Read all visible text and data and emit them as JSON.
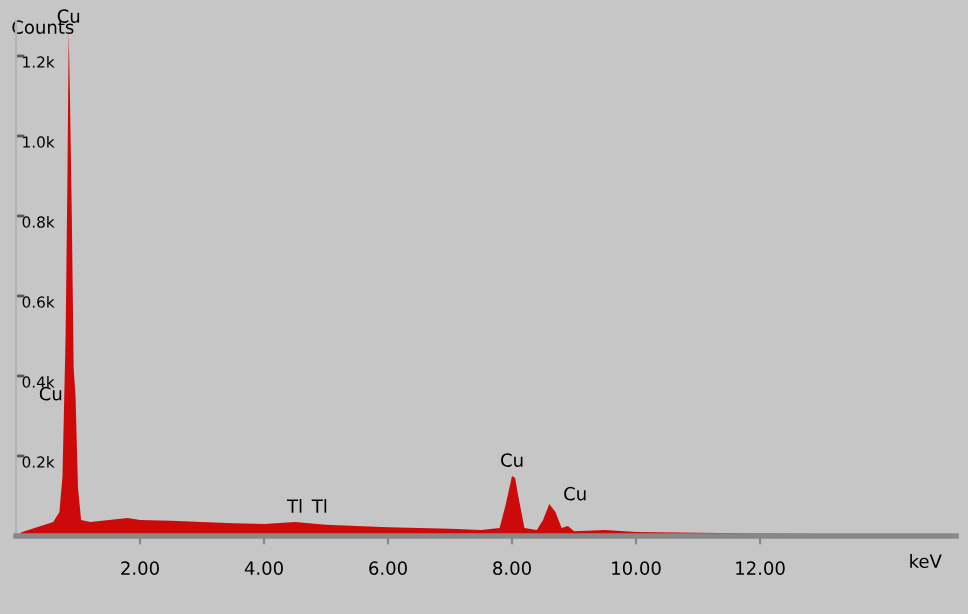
{
  "chart_data": {
    "type": "area",
    "xlabel": "keV",
    "ylabel": "Counts",
    "color": "#cc0a0a",
    "x": [
      0.0,
      0.1,
      0.2,
      0.3,
      0.4,
      0.5,
      0.6,
      0.7,
      0.75,
      0.8,
      0.83,
      0.85,
      0.87,
      0.9,
      0.93,
      0.96,
      1.0,
      1.05,
      1.2,
      1.5,
      1.8,
      2.0,
      2.5,
      3.0,
      3.5,
      4.0,
      4.5,
      5.0,
      5.5,
      6.0,
      6.5,
      7.0,
      7.5,
      7.8,
      7.9,
      8.0,
      8.05,
      8.1,
      8.2,
      8.4,
      8.5,
      8.6,
      8.7,
      8.8,
      8.9,
      9.0,
      9.5,
      10.0,
      11.0,
      12.0,
      13.0,
      14.0,
      15.0
    ],
    "values": [
      0,
      10,
      15,
      20,
      25,
      30,
      35,
      60,
      150,
      500,
      900,
      1260,
      1100,
      800,
      420,
      350,
      120,
      40,
      35,
      40,
      45,
      40,
      38,
      35,
      32,
      30,
      35,
      28,
      25,
      22,
      20,
      18,
      15,
      20,
      80,
      150,
      145,
      100,
      20,
      15,
      40,
      80,
      60,
      20,
      25,
      12,
      15,
      10,
      8,
      6,
      5,
      5,
      5
    ],
    "xlim": [
      0,
      15.16
    ],
    "ylim": [
      0,
      1290
    ],
    "xticks": [
      {
        "value": 2,
        "label": "2.00"
      },
      {
        "value": 4,
        "label": "4.00"
      },
      {
        "value": 6,
        "label": "6.00"
      },
      {
        "value": 8,
        "label": "8.00"
      },
      {
        "value": 10,
        "label": "10.00"
      },
      {
        "value": 12,
        "label": "12.00"
      }
    ],
    "yticks": [
      {
        "value": 200,
        "label": "0.2k"
      },
      {
        "value": 400,
        "label": "0.4k"
      },
      {
        "value": 600,
        "label": "0.6k"
      },
      {
        "value": 800,
        "label": "0.8k"
      },
      {
        "value": 1000,
        "label": "1.0k"
      },
      {
        "value": 1200,
        "label": "1.2k"
      }
    ],
    "grid": false,
    "annotations": [
      {
        "text": "Cu",
        "x": 0.85,
        "y": 1260
      },
      {
        "text": "Cu",
        "x": 0.8,
        "y": 330
      },
      {
        "text": "Tl",
        "x": 4.5,
        "y": 35
      },
      {
        "text": "Tl",
        "x": 4.9,
        "y": 35
      },
      {
        "text": "Cu",
        "x": 8.0,
        "y": 150
      },
      {
        "text": "Cu",
        "x": 8.6,
        "y": 80
      }
    ]
  }
}
